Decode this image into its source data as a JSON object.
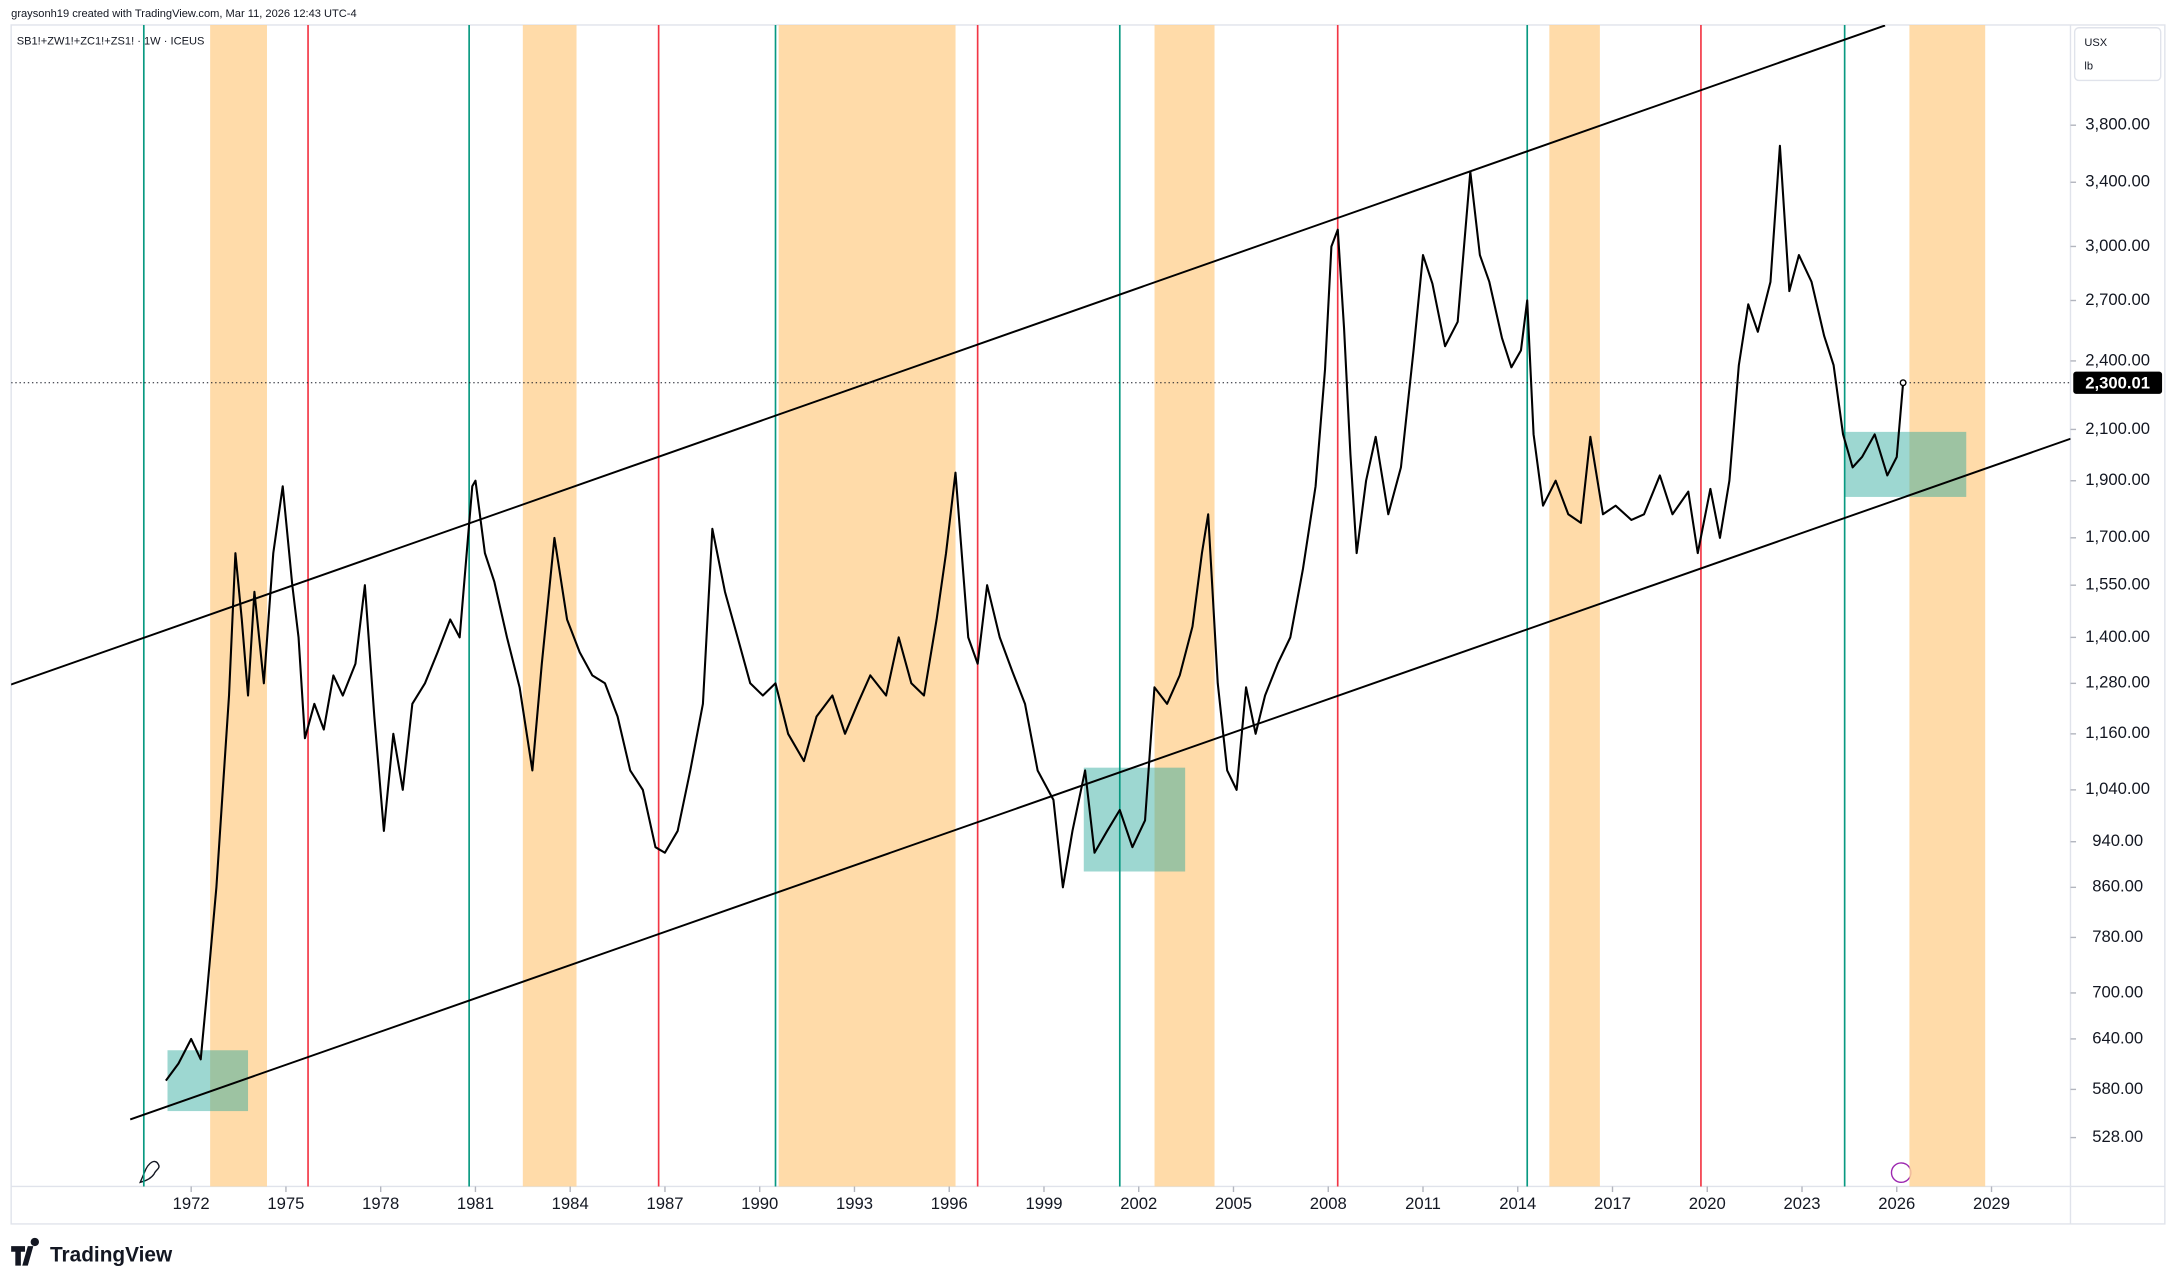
{
  "chart_data": {
    "type": "line",
    "attribution": "graysonh19 created with TradingView.com, Mar 11, 2026 12:43 UTC-4",
    "currency": "USX",
    "unit": "lb",
    "brand": "TradingView",
    "log_scale": true,
    "xlim": [
      1966.3,
      2031.5
    ],
    "xticks": [
      1972,
      1975,
      1978,
      1981,
      1984,
      1987,
      1990,
      1993,
      1996,
      1999,
      2002,
      2005,
      2008,
      2011,
      2014,
      2017,
      2020,
      2023,
      2026,
      2029
    ],
    "ylim": [
      480,
      4620
    ],
    "yticks": [
      {
        "value": 528,
        "label": "528.00"
      },
      {
        "value": 580,
        "label": "580.00"
      },
      {
        "value": 640,
        "label": "640.00"
      },
      {
        "value": 700,
        "label": "700.00"
      },
      {
        "value": 780,
        "label": "780.00"
      },
      {
        "value": 860,
        "label": "860.00"
      },
      {
        "value": 940,
        "label": "940.00"
      },
      {
        "value": 1040,
        "label": "1,040.00"
      },
      {
        "value": 1160,
        "label": "1,160.00"
      },
      {
        "value": 1280,
        "label": "1,280.00"
      },
      {
        "value": 1400,
        "label": "1,400.00"
      },
      {
        "value": 1550,
        "label": "1,550.00"
      },
      {
        "value": 1700,
        "label": "1,700.00"
      },
      {
        "value": 1900,
        "label": "1,900.00"
      },
      {
        "value": 2100,
        "label": "2,100.00"
      },
      {
        "value": 2400,
        "label": "2,400.00"
      },
      {
        "value": 2700,
        "label": "2,700.00"
      },
      {
        "value": 3000,
        "label": "3,000.00"
      },
      {
        "value": 3400,
        "label": "3,400.00"
      },
      {
        "value": 3800,
        "label": "3,800.00"
      }
    ],
    "last_price": {
      "value": 2300.01,
      "label": "2,300.01"
    },
    "x": [
      1971.2,
      1971.6,
      1972.0,
      1972.3,
      1972.5,
      1972.8,
      1973.0,
      1973.2,
      1973.4,
      1973.6,
      1973.8,
      1974.0,
      1974.3,
      1974.6,
      1974.9,
      1975.2,
      1975.4,
      1975.6,
      1975.9,
      1976.2,
      1976.5,
      1976.8,
      1977.2,
      1977.5,
      1977.8,
      1978.1,
      1978.4,
      1978.7,
      1979.0,
      1979.4,
      1979.8,
      1980.2,
      1980.5,
      1980.9,
      1981.0,
      1981.3,
      1981.6,
      1982.0,
      1982.4,
      1982.8,
      1983.1,
      1983.5,
      1983.9,
      1984.3,
      1984.7,
      1985.1,
      1985.5,
      1985.9,
      1986.3,
      1986.7,
      1987.0,
      1987.4,
      1987.8,
      1988.2,
      1988.5,
      1988.9,
      1989.3,
      1989.7,
      1990.1,
      1990.5,
      1990.9,
      1991.4,
      1991.8,
      1992.3,
      1992.7,
      1993.1,
      1993.5,
      1994.0,
      1994.4,
      1994.8,
      1995.2,
      1995.6,
      1995.9,
      1996.2,
      1996.6,
      1996.9,
      1997.2,
      1997.6,
      1998.0,
      1998.4,
      1998.8,
      1999.3,
      1999.6,
      1999.9,
      2000.3,
      2000.6,
      2001.0,
      2001.4,
      2001.8,
      2002.2,
      2002.5,
      2002.9,
      2003.3,
      2003.7,
      2004.0,
      2004.2,
      2004.5,
      2004.8,
      2005.1,
      2005.4,
      2005.7,
      2006.0,
      2006.4,
      2006.8,
      2007.2,
      2007.6,
      2007.9,
      2008.1,
      2008.3,
      2008.5,
      2008.7,
      2008.9,
      2009.2,
      2009.5,
      2009.9,
      2010.3,
      2010.7,
      2011.0,
      2011.3,
      2011.7,
      2012.1,
      2012.5,
      2012.8,
      2013.1,
      2013.5,
      2013.8,
      2014.1,
      2014.3,
      2014.5,
      2014.8,
      2015.2,
      2015.6,
      2016.0,
      2016.3,
      2016.7,
      2017.1,
      2017.6,
      2018.0,
      2018.5,
      2018.9,
      2019.4,
      2019.7,
      2020.1,
      2020.4,
      2020.7,
      2021.0,
      2021.3,
      2021.6,
      2022.0,
      2022.3,
      2022.6,
      2022.9,
      2023.3,
      2023.7,
      2024.0,
      2024.3,
      2024.6,
      2024.9,
      2025.3,
      2025.7,
      2026.0,
      2026.2
    ],
    "series": [
      {
        "name": "SB1!+ZW1!+ZC1!+ZS1! · 1W · ICEUS",
        "color": "#000000",
        "values": [
          590,
          610,
          640,
          615,
          700,
          860,
          1040,
          1250,
          1650,
          1450,
          1250,
          1530,
          1280,
          1650,
          1880,
          1550,
          1400,
          1150,
          1230,
          1170,
          1300,
          1250,
          1330,
          1550,
          1200,
          960,
          1160,
          1040,
          1230,
          1280,
          1360,
          1450,
          1400,
          1880,
          1900,
          1650,
          1560,
          1400,
          1270,
          1080,
          1330,
          1700,
          1450,
          1360,
          1300,
          1280,
          1200,
          1080,
          1040,
          930,
          920,
          960,
          1080,
          1230,
          1730,
          1530,
          1400,
          1280,
          1250,
          1280,
          1160,
          1100,
          1200,
          1250,
          1160,
          1230,
          1300,
          1250,
          1400,
          1280,
          1250,
          1450,
          1650,
          1930,
          1400,
          1330,
          1550,
          1400,
          1310,
          1230,
          1080,
          1020,
          860,
          960,
          1080,
          920,
          960,
          1000,
          930,
          980,
          1270,
          1230,
          1300,
          1430,
          1650,
          1780,
          1280,
          1080,
          1040,
          1270,
          1160,
          1250,
          1330,
          1400,
          1600,
          1880,
          2360,
          3000,
          3100,
          2560,
          2000,
          1650,
          1900,
          2070,
          1780,
          1950,
          2450,
          2950,
          2790,
          2470,
          2590,
          3470,
          2950,
          2800,
          2510,
          2370,
          2450,
          2700,
          2080,
          1810,
          1900,
          1780,
          1750,
          2070,
          1780,
          1810,
          1760,
          1780,
          1920,
          1780,
          1860,
          1650,
          1870,
          1700,
          1900,
          2380,
          2680,
          2540,
          2800,
          3650,
          2750,
          2950,
          2800,
          2520,
          2380,
          2080,
          1950,
          1990,
          2080,
          1920,
          1990,
          2300
        ]
      }
    ],
    "vlines": [
      {
        "x": 1970.5,
        "color": "#089981"
      },
      {
        "x": 1975.7,
        "color": "#f23645"
      },
      {
        "x": 1980.8,
        "color": "#089981"
      },
      {
        "x": 1986.8,
        "color": "#f23645"
      },
      {
        "x": 1990.5,
        "color": "#089981"
      },
      {
        "x": 1996.9,
        "color": "#f23645"
      },
      {
        "x": 2001.4,
        "color": "#089981"
      },
      {
        "x": 2008.3,
        "color": "#f23645"
      },
      {
        "x": 2014.3,
        "color": "#089981"
      },
      {
        "x": 2019.8,
        "color": "#f23645"
      },
      {
        "x": 2024.35,
        "color": "#089981"
      }
    ],
    "bands": {
      "color": "#ffd59a",
      "ranges": [
        [
          1972.6,
          1974.4
        ],
        [
          1982.5,
          1984.2
        ],
        [
          1990.6,
          1996.2
        ],
        [
          2002.5,
          2004.4
        ],
        [
          2015.0,
          2016.6
        ],
        [
          2026.4,
          2028.8
        ]
      ]
    },
    "boxes": {
      "color": "#26a69a",
      "items": [
        {
          "x": [
            1971.25,
            1973.8
          ],
          "y": [
            556,
            626
          ]
        },
        {
          "x": [
            2000.26,
            2003.47
          ],
          "y": [
            887,
            1086
          ]
        },
        {
          "x": [
            2024.35,
            2028.2
          ],
          "y": [
            1841,
            2090
          ]
        }
      ]
    },
    "trendlines": [
      {
        "x": [
          1966.29,
          2025.63
        ],
        "y": [
          1277,
          4616
        ]
      },
      {
        "x": [
          1970.07,
          2031.5
        ],
        "y": [
          547,
          2062
        ]
      }
    ]
  }
}
